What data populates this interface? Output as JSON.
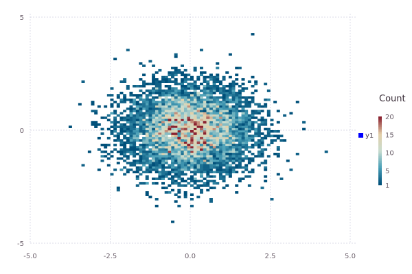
{
  "chart_data": {
    "type": "heatmap",
    "title": "",
    "xlabel": "",
    "ylabel": "",
    "xlim": [
      -5,
      5
    ],
    "ylim": [
      -5,
      5
    ],
    "x_ticks": [
      "-5.0",
      "-2.5",
      "0.0",
      "2.5",
      "5.0"
    ],
    "x_tick_values": [
      -5,
      -2.5,
      0,
      2.5,
      5
    ],
    "y_ticks": [
      "5",
      "0",
      "-5"
    ],
    "y_tick_values": [
      5,
      0,
      -5
    ],
    "grid": true,
    "legend": {
      "position": "right",
      "series": [
        {
          "name": "y1",
          "color": "#0000ff"
        }
      ]
    },
    "colorbar": {
      "title": "Count",
      "range": [
        1,
        20
      ],
      "ticks": [
        "20",
        "15",
        "10",
        "5",
        "1"
      ],
      "tick_values": [
        20,
        15,
        10,
        5,
        1
      ],
      "colors": [
        "#00507a",
        "#4aa0b8",
        "#c8dccf",
        "#e3cfa8",
        "#8b2331"
      ]
    },
    "bin_width": [
      0.1,
      0.1
    ],
    "distribution_note": "2D histogram of points centered near (0,0); counts 1-20 per bin, densest at center"
  }
}
